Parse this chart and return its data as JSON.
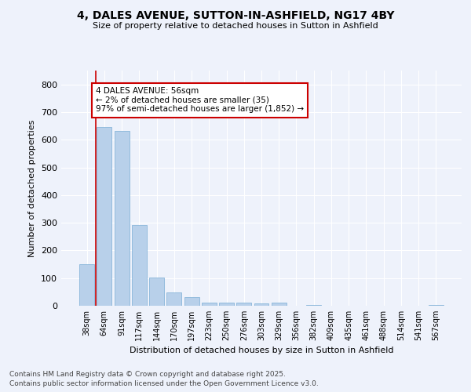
{
  "title_line1": "4, DALES AVENUE, SUTTON-IN-ASHFIELD, NG17 4BY",
  "title_line2": "Size of property relative to detached houses in Sutton in Ashfield",
  "xlabel": "Distribution of detached houses by size in Sutton in Ashfield",
  "ylabel": "Number of detached properties",
  "categories": [
    "38sqm",
    "64sqm",
    "91sqm",
    "117sqm",
    "144sqm",
    "170sqm",
    "197sqm",
    "223sqm",
    "250sqm",
    "276sqm",
    "303sqm",
    "329sqm",
    "356sqm",
    "382sqm",
    "409sqm",
    "435sqm",
    "461sqm",
    "488sqm",
    "514sqm",
    "541sqm",
    "567sqm"
  ],
  "values": [
    150,
    645,
    633,
    291,
    103,
    48,
    32,
    10,
    10,
    10,
    8,
    10,
    0,
    3,
    0,
    0,
    0,
    0,
    0,
    0,
    3
  ],
  "bar_color": "#b8d0ea",
  "bar_edge_color": "#7aadd4",
  "vline_color": "#cc0000",
  "annotation_text": "4 DALES AVENUE: 56sqm\n← 2% of detached houses are smaller (35)\n97% of semi-detached houses are larger (1,852) →",
  "annotation_box_color": "#ffffff",
  "annotation_box_edge_color": "#cc0000",
  "background_color": "#eef2fb",
  "grid_color": "#ffffff",
  "ylim": [
    0,
    850
  ],
  "yticks": [
    0,
    100,
    200,
    300,
    400,
    500,
    600,
    700,
    800
  ],
  "footer_line1": "Contains HM Land Registry data © Crown copyright and database right 2025.",
  "footer_line2": "Contains public sector information licensed under the Open Government Licence v3.0."
}
